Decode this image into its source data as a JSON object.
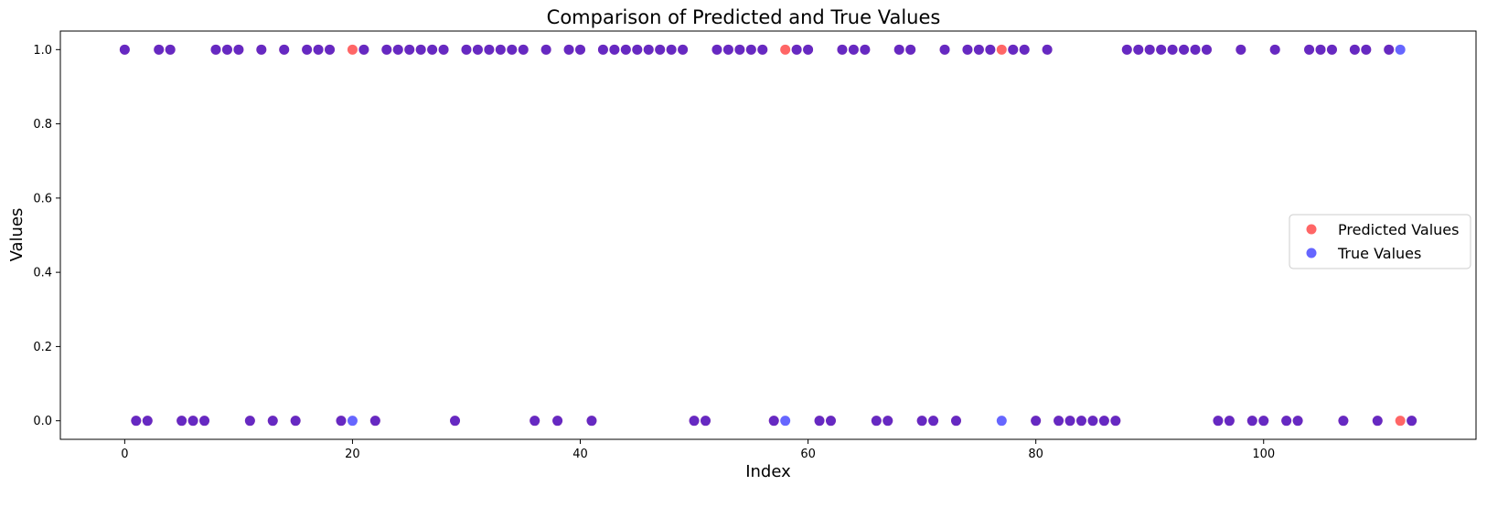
{
  "chart_data": {
    "type": "scatter",
    "title": "Comparison of Predicted and True Values",
    "xlabel": "Index",
    "ylabel": "Values",
    "xlim": [
      -5.65,
      118.65
    ],
    "ylim": [
      -0.05,
      1.05
    ],
    "xticks": [
      0,
      20,
      40,
      60,
      80,
      100
    ],
    "yticks": [
      0.0,
      0.2,
      0.4,
      0.6,
      0.8,
      1.0
    ],
    "ytick_labels": [
      "0.0",
      "0.2",
      "0.4",
      "0.6",
      "0.8",
      "1.0"
    ],
    "grid": false,
    "legend_position": "center-right",
    "series": [
      {
        "name": "Predicted Values",
        "color": "#ff0000",
        "alpha": 0.6,
        "values": [
          1,
          0,
          0,
          1,
          1,
          0,
          0,
          0,
          1,
          1,
          1,
          0,
          1,
          0,
          1,
          0,
          1,
          1,
          1,
          0,
          1,
          1,
          0,
          1,
          1,
          1,
          1,
          1,
          1,
          0,
          1,
          1,
          1,
          1,
          1,
          1,
          0,
          1,
          0,
          1,
          1,
          0,
          1,
          1,
          1,
          1,
          1,
          1,
          1,
          1,
          0,
          0,
          1,
          1,
          1,
          1,
          1,
          0,
          1,
          1,
          1,
          0,
          0,
          1,
          1,
          1,
          0,
          0,
          1,
          1,
          0,
          0,
          1,
          0,
          1,
          1,
          1,
          1,
          1,
          1,
          0,
          1,
          0,
          0,
          0,
          0,
          0,
          0,
          1,
          1,
          1,
          1,
          1,
          1,
          1,
          1,
          0,
          0,
          1,
          0,
          0,
          1,
          0,
          0,
          1,
          1,
          1,
          0,
          1,
          1,
          0,
          1,
          0,
          0
        ]
      },
      {
        "name": "True Values",
        "color": "#0000ff",
        "alpha": 0.6,
        "values": [
          1,
          0,
          0,
          1,
          1,
          0,
          0,
          0,
          1,
          1,
          1,
          0,
          1,
          0,
          1,
          0,
          1,
          1,
          1,
          0,
          0,
          1,
          0,
          1,
          1,
          1,
          1,
          1,
          1,
          0,
          1,
          1,
          1,
          1,
          1,
          1,
          0,
          1,
          0,
          1,
          1,
          0,
          1,
          1,
          1,
          1,
          1,
          1,
          1,
          1,
          0,
          0,
          1,
          1,
          1,
          1,
          1,
          0,
          0,
          1,
          1,
          0,
          0,
          1,
          1,
          1,
          0,
          0,
          1,
          1,
          0,
          0,
          1,
          0,
          1,
          1,
          1,
          0,
          1,
          1,
          0,
          1,
          0,
          0,
          0,
          0,
          0,
          0,
          1,
          1,
          1,
          1,
          1,
          1,
          1,
          1,
          0,
          0,
          1,
          0,
          0,
          1,
          0,
          0,
          1,
          1,
          1,
          0,
          1,
          1,
          0,
          1,
          1,
          0
        ]
      }
    ]
  }
}
